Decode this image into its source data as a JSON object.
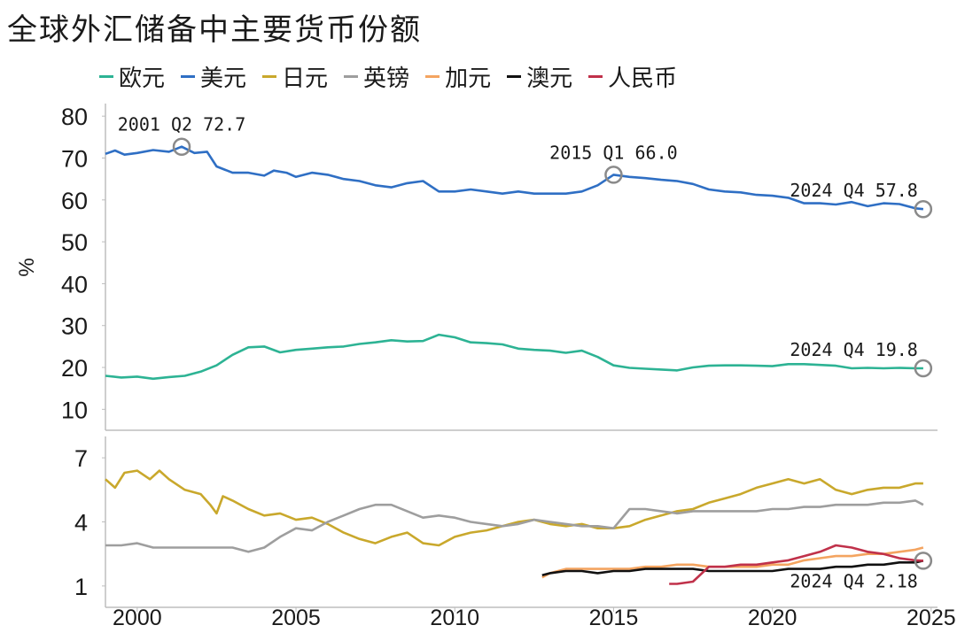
{
  "title": "全球外汇储备中主要货币份额",
  "chart_data": {
    "type": "line",
    "title": "全球外汇储备中主要货币份额",
    "ylabel_top": "%",
    "x_ticks": [
      2000,
      2005,
      2010,
      2015,
      2020,
      2025
    ],
    "xlim": [
      1999.0,
      2025.2
    ],
    "top_panel": {
      "ylim": [
        5,
        83
      ],
      "yticks": [
        10,
        20,
        30,
        40,
        50,
        60,
        70,
        80
      ]
    },
    "bottom_panel": {
      "ylim": [
        0,
        8
      ],
      "yticks": [
        1,
        4,
        7
      ]
    },
    "series": [
      {
        "name": "欧元",
        "color": "#2db394",
        "panel": "top",
        "points": [
          [
            1999.0,
            18.0
          ],
          [
            1999.5,
            17.6
          ],
          [
            2000.0,
            17.8
          ],
          [
            2000.5,
            17.3
          ],
          [
            2001.0,
            17.7
          ],
          [
            2001.5,
            18.0
          ],
          [
            2002.0,
            19.0
          ],
          [
            2002.5,
            20.5
          ],
          [
            2003.0,
            23.0
          ],
          [
            2003.5,
            24.8
          ],
          [
            2004.0,
            25.0
          ],
          [
            2004.5,
            23.6
          ],
          [
            2005.0,
            24.2
          ],
          [
            2005.5,
            24.5
          ],
          [
            2006.0,
            24.8
          ],
          [
            2006.5,
            25.0
          ],
          [
            2007.0,
            25.6
          ],
          [
            2007.5,
            26.0
          ],
          [
            2008.0,
            26.5
          ],
          [
            2008.5,
            26.2
          ],
          [
            2009.0,
            26.3
          ],
          [
            2009.5,
            27.8
          ],
          [
            2010.0,
            27.2
          ],
          [
            2010.5,
            26.0
          ],
          [
            2011.0,
            25.8
          ],
          [
            2011.5,
            25.5
          ],
          [
            2012.0,
            24.5
          ],
          [
            2012.5,
            24.2
          ],
          [
            2013.0,
            24.0
          ],
          [
            2013.5,
            23.5
          ],
          [
            2014.0,
            24.0
          ],
          [
            2014.5,
            22.5
          ],
          [
            2015.0,
            20.5
          ],
          [
            2015.5,
            19.9
          ],
          [
            2016.0,
            19.7
          ],
          [
            2016.5,
            19.5
          ],
          [
            2017.0,
            19.3
          ],
          [
            2017.5,
            20.0
          ],
          [
            2018.0,
            20.4
          ],
          [
            2018.5,
            20.5
          ],
          [
            2019.0,
            20.5
          ],
          [
            2019.5,
            20.4
          ],
          [
            2020.0,
            20.3
          ],
          [
            2020.5,
            20.8
          ],
          [
            2021.0,
            20.8
          ],
          [
            2021.5,
            20.6
          ],
          [
            2022.0,
            20.4
          ],
          [
            2022.5,
            19.8
          ],
          [
            2023.0,
            19.9
          ],
          [
            2023.5,
            19.8
          ],
          [
            2024.0,
            19.9
          ],
          [
            2024.5,
            19.8
          ],
          [
            2024.75,
            19.8
          ]
        ]
      },
      {
        "name": "美元",
        "color": "#2f6fc4",
        "panel": "top",
        "points": [
          [
            1999.0,
            71.0
          ],
          [
            1999.3,
            71.8
          ],
          [
            1999.6,
            70.8
          ],
          [
            2000.0,
            71.2
          ],
          [
            2000.5,
            71.9
          ],
          [
            2001.0,
            71.5
          ],
          [
            2001.4,
            72.7
          ],
          [
            2001.8,
            71.2
          ],
          [
            2002.2,
            71.5
          ],
          [
            2002.5,
            68.0
          ],
          [
            2003.0,
            66.5
          ],
          [
            2003.5,
            66.5
          ],
          [
            2004.0,
            65.8
          ],
          [
            2004.3,
            67.0
          ],
          [
            2004.7,
            66.5
          ],
          [
            2005.0,
            65.5
          ],
          [
            2005.5,
            66.5
          ],
          [
            2006.0,
            66.0
          ],
          [
            2006.5,
            65.0
          ],
          [
            2007.0,
            64.5
          ],
          [
            2007.5,
            63.5
          ],
          [
            2008.0,
            63.0
          ],
          [
            2008.5,
            64.0
          ],
          [
            2009.0,
            64.5
          ],
          [
            2009.5,
            62.0
          ],
          [
            2010.0,
            62.0
          ],
          [
            2010.5,
            62.5
          ],
          [
            2011.0,
            62.0
          ],
          [
            2011.5,
            61.5
          ],
          [
            2012.0,
            62.0
          ],
          [
            2012.5,
            61.5
          ],
          [
            2013.0,
            61.5
          ],
          [
            2013.5,
            61.5
          ],
          [
            2014.0,
            62.0
          ],
          [
            2014.5,
            63.5
          ],
          [
            2015.0,
            66.0
          ],
          [
            2015.5,
            65.5
          ],
          [
            2016.0,
            65.2
          ],
          [
            2016.5,
            64.8
          ],
          [
            2017.0,
            64.5
          ],
          [
            2017.5,
            63.8
          ],
          [
            2018.0,
            62.5
          ],
          [
            2018.5,
            62.0
          ],
          [
            2019.0,
            61.8
          ],
          [
            2019.5,
            61.2
          ],
          [
            2020.0,
            61.0
          ],
          [
            2020.5,
            60.5
          ],
          [
            2021.0,
            59.2
          ],
          [
            2021.5,
            59.2
          ],
          [
            2022.0,
            58.9
          ],
          [
            2022.5,
            59.5
          ],
          [
            2023.0,
            58.5
          ],
          [
            2023.5,
            59.2
          ],
          [
            2024.0,
            59.0
          ],
          [
            2024.5,
            58.0
          ],
          [
            2024.75,
            57.8
          ]
        ]
      },
      {
        "name": "日元",
        "color": "#c9a82c",
        "panel": "bottom",
        "points": [
          [
            1999.0,
            6.0
          ],
          [
            1999.3,
            5.6
          ],
          [
            1999.6,
            6.3
          ],
          [
            2000.0,
            6.4
          ],
          [
            2000.4,
            6.0
          ],
          [
            2000.7,
            6.4
          ],
          [
            2001.0,
            6.0
          ],
          [
            2001.5,
            5.5
          ],
          [
            2002.0,
            5.3
          ],
          [
            2002.3,
            4.8
          ],
          [
            2002.5,
            4.4
          ],
          [
            2002.7,
            5.2
          ],
          [
            2003.0,
            5.0
          ],
          [
            2003.5,
            4.6
          ],
          [
            2004.0,
            4.3
          ],
          [
            2004.5,
            4.4
          ],
          [
            2005.0,
            4.1
          ],
          [
            2005.5,
            4.2
          ],
          [
            2006.0,
            3.9
          ],
          [
            2006.5,
            3.5
          ],
          [
            2007.0,
            3.2
          ],
          [
            2007.5,
            3.0
          ],
          [
            2008.0,
            3.3
          ],
          [
            2008.5,
            3.5
          ],
          [
            2009.0,
            3.0
          ],
          [
            2009.5,
            2.9
          ],
          [
            2010.0,
            3.3
          ],
          [
            2010.5,
            3.5
          ],
          [
            2011.0,
            3.6
          ],
          [
            2011.5,
            3.8
          ],
          [
            2012.0,
            4.0
          ],
          [
            2012.5,
            4.1
          ],
          [
            2013.0,
            3.9
          ],
          [
            2013.5,
            3.8
          ],
          [
            2014.0,
            3.9
          ],
          [
            2014.5,
            3.7
          ],
          [
            2015.0,
            3.7
          ],
          [
            2015.5,
            3.8
          ],
          [
            2016.0,
            4.1
          ],
          [
            2016.5,
            4.3
          ],
          [
            2017.0,
            4.5
          ],
          [
            2017.5,
            4.6
          ],
          [
            2018.0,
            4.9
          ],
          [
            2018.5,
            5.1
          ],
          [
            2019.0,
            5.3
          ],
          [
            2019.5,
            5.6
          ],
          [
            2020.0,
            5.8
          ],
          [
            2020.5,
            6.0
          ],
          [
            2021.0,
            5.8
          ],
          [
            2021.5,
            6.0
          ],
          [
            2022.0,
            5.5
          ],
          [
            2022.5,
            5.3
          ],
          [
            2023.0,
            5.5
          ],
          [
            2023.5,
            5.6
          ],
          [
            2024.0,
            5.6
          ],
          [
            2024.5,
            5.8
          ],
          [
            2024.75,
            5.8
          ]
        ]
      },
      {
        "name": "英镑",
        "color": "#9e9e9e",
        "panel": "bottom",
        "points": [
          [
            1999.0,
            2.9
          ],
          [
            1999.5,
            2.9
          ],
          [
            2000.0,
            3.0
          ],
          [
            2000.5,
            2.8
          ],
          [
            2001.0,
            2.8
          ],
          [
            2001.5,
            2.8
          ],
          [
            2002.0,
            2.8
          ],
          [
            2002.5,
            2.8
          ],
          [
            2003.0,
            2.8
          ],
          [
            2003.5,
            2.6
          ],
          [
            2004.0,
            2.8
          ],
          [
            2004.5,
            3.3
          ],
          [
            2005.0,
            3.7
          ],
          [
            2005.5,
            3.6
          ],
          [
            2006.0,
            4.0
          ],
          [
            2006.5,
            4.3
          ],
          [
            2007.0,
            4.6
          ],
          [
            2007.5,
            4.8
          ],
          [
            2008.0,
            4.8
          ],
          [
            2008.5,
            4.5
          ],
          [
            2009.0,
            4.2
          ],
          [
            2009.5,
            4.3
          ],
          [
            2010.0,
            4.2
          ],
          [
            2010.5,
            4.0
          ],
          [
            2011.0,
            3.9
          ],
          [
            2011.5,
            3.8
          ],
          [
            2012.0,
            3.9
          ],
          [
            2012.5,
            4.1
          ],
          [
            2013.0,
            4.0
          ],
          [
            2013.5,
            3.9
          ],
          [
            2014.0,
            3.8
          ],
          [
            2014.5,
            3.8
          ],
          [
            2015.0,
            3.7
          ],
          [
            2015.5,
            4.6
          ],
          [
            2016.0,
            4.6
          ],
          [
            2016.5,
            4.5
          ],
          [
            2017.0,
            4.4
          ],
          [
            2017.5,
            4.5
          ],
          [
            2018.0,
            4.5
          ],
          [
            2018.5,
            4.5
          ],
          [
            2019.0,
            4.5
          ],
          [
            2019.5,
            4.5
          ],
          [
            2020.0,
            4.6
          ],
          [
            2020.5,
            4.6
          ],
          [
            2021.0,
            4.7
          ],
          [
            2021.5,
            4.7
          ],
          [
            2022.0,
            4.8
          ],
          [
            2022.5,
            4.8
          ],
          [
            2023.0,
            4.8
          ],
          [
            2023.5,
            4.9
          ],
          [
            2024.0,
            4.9
          ],
          [
            2024.5,
            5.0
          ],
          [
            2024.75,
            4.8
          ]
        ]
      },
      {
        "name": "加元",
        "color": "#f4a460",
        "panel": "bottom",
        "points": [
          [
            2012.75,
            1.4
          ],
          [
            2013.0,
            1.6
          ],
          [
            2013.5,
            1.8
          ],
          [
            2014.0,
            1.8
          ],
          [
            2014.5,
            1.8
          ],
          [
            2015.0,
            1.8
          ],
          [
            2015.5,
            1.8
          ],
          [
            2016.0,
            1.9
          ],
          [
            2016.5,
            1.9
          ],
          [
            2017.0,
            2.0
          ],
          [
            2017.5,
            2.0
          ],
          [
            2018.0,
            1.9
          ],
          [
            2018.5,
            1.9
          ],
          [
            2019.0,
            1.9
          ],
          [
            2019.5,
            1.9
          ],
          [
            2020.0,
            2.0
          ],
          [
            2020.5,
            2.0
          ],
          [
            2021.0,
            2.2
          ],
          [
            2021.5,
            2.3
          ],
          [
            2022.0,
            2.4
          ],
          [
            2022.5,
            2.4
          ],
          [
            2023.0,
            2.5
          ],
          [
            2023.5,
            2.5
          ],
          [
            2024.0,
            2.6
          ],
          [
            2024.5,
            2.7
          ],
          [
            2024.75,
            2.8
          ]
        ]
      },
      {
        "name": "澳元",
        "color": "#111111",
        "panel": "bottom",
        "points": [
          [
            2012.75,
            1.5
          ],
          [
            2013.0,
            1.6
          ],
          [
            2013.5,
            1.7
          ],
          [
            2014.0,
            1.7
          ],
          [
            2014.5,
            1.6
          ],
          [
            2015.0,
            1.7
          ],
          [
            2015.5,
            1.7
          ],
          [
            2016.0,
            1.8
          ],
          [
            2016.5,
            1.8
          ],
          [
            2017.0,
            1.8
          ],
          [
            2017.5,
            1.8
          ],
          [
            2018.0,
            1.7
          ],
          [
            2018.5,
            1.7
          ],
          [
            2019.0,
            1.7
          ],
          [
            2019.5,
            1.7
          ],
          [
            2020.0,
            1.7
          ],
          [
            2020.5,
            1.8
          ],
          [
            2021.0,
            1.8
          ],
          [
            2021.5,
            1.8
          ],
          [
            2022.0,
            1.9
          ],
          [
            2022.5,
            1.9
          ],
          [
            2023.0,
            2.0
          ],
          [
            2023.5,
            2.0
          ],
          [
            2024.0,
            2.1
          ],
          [
            2024.5,
            2.1
          ],
          [
            2024.75,
            2.18
          ]
        ]
      },
      {
        "name": "人民币",
        "color": "#c0314a",
        "panel": "bottom",
        "points": [
          [
            2016.75,
            1.1
          ],
          [
            2017.0,
            1.1
          ],
          [
            2017.5,
            1.2
          ],
          [
            2018.0,
            1.9
          ],
          [
            2018.5,
            1.9
          ],
          [
            2019.0,
            2.0
          ],
          [
            2019.5,
            2.0
          ],
          [
            2020.0,
            2.1
          ],
          [
            2020.5,
            2.2
          ],
          [
            2021.0,
            2.4
          ],
          [
            2021.5,
            2.6
          ],
          [
            2022.0,
            2.9
          ],
          [
            2022.5,
            2.8
          ],
          [
            2023.0,
            2.6
          ],
          [
            2023.5,
            2.5
          ],
          [
            2024.0,
            2.3
          ],
          [
            2024.5,
            2.2
          ],
          [
            2024.75,
            2.18
          ]
        ]
      }
    ],
    "annotations": [
      {
        "label": "2001 Q2 72.7",
        "x": 2001.4,
        "y": 72.7,
        "panel": "top",
        "text_anchor": "above"
      },
      {
        "label": "2015 Q1 66.0",
        "x": 2015.0,
        "y": 66.0,
        "panel": "top",
        "text_anchor": "above"
      },
      {
        "label": "2024 Q4 57.8",
        "x": 2024.75,
        "y": 57.8,
        "panel": "top",
        "text_anchor": "above-left"
      },
      {
        "label": "2024 Q4 19.8",
        "x": 2024.75,
        "y": 19.8,
        "panel": "top",
        "text_anchor": "above-left"
      },
      {
        "label": "2024 Q4 2.18",
        "x": 2024.75,
        "y": 2.18,
        "panel": "bottom",
        "text_anchor": "below-left"
      }
    ]
  }
}
